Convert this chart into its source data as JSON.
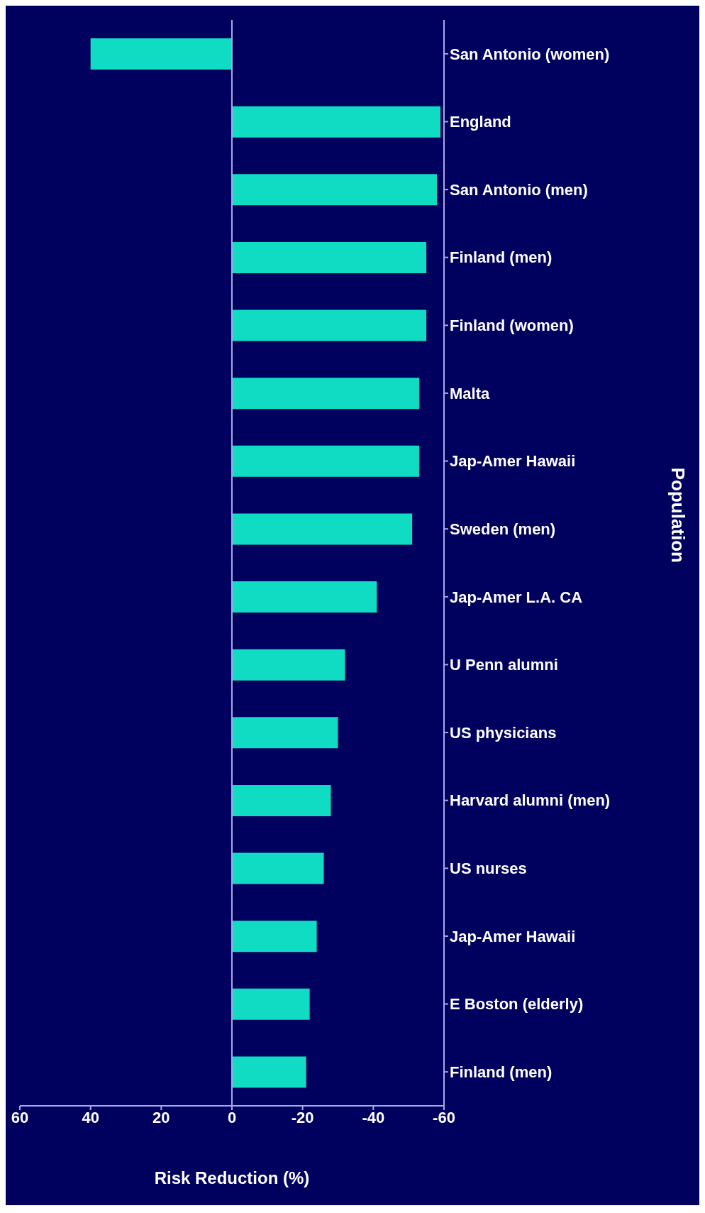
{
  "chart_data": {
    "type": "bar",
    "orientation": "horizontal",
    "xlabel": "Risk Reduction (%)",
    "ylabel": "Population",
    "categories": [
      "San Antonio (women)",
      "England",
      "San Antonio (men)",
      "Finland (men)",
      "Finland (women)",
      "Malta",
      "Jap-Amer Hawaii",
      "Sweden (men)",
      "Jap-Amer L.A. CA",
      "U Penn alumni",
      "US physicians",
      "Harvard alumni (men)",
      "US nurses",
      "Jap-Amer Hawaii",
      "E Boston (elderly)",
      "Finland (men)"
    ],
    "values": [
      40,
      -59,
      -58,
      -55,
      -55,
      -53,
      -53,
      -51,
      -41,
      -32,
      -30,
      -28,
      -26,
      -24,
      -22,
      -21
    ],
    "color": "#10dcc4",
    "xlim": [
      60,
      -60
    ],
    "xticks": [
      60,
      40,
      20,
      0,
      -20,
      -40,
      -60
    ],
    "ref_lines": [
      {
        "axis": "x",
        "value": 0,
        "color": "#a8a8e8"
      }
    ]
  }
}
